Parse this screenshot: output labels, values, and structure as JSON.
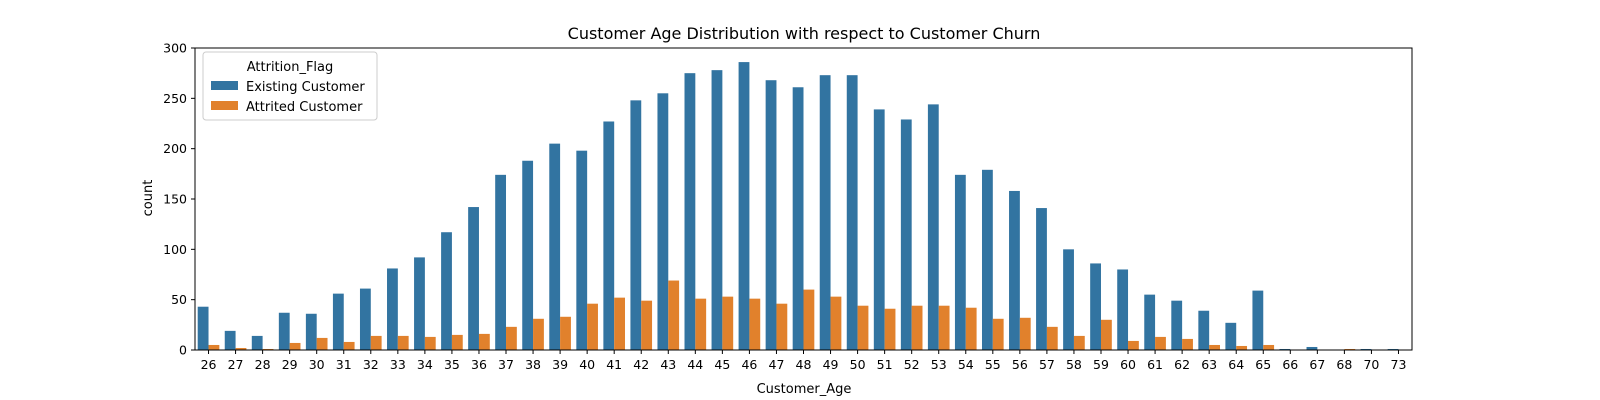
{
  "chart_data": {
    "type": "bar",
    "title": "Customer Age Distribution with respect to Customer Churn",
    "xlabel": "Customer_Age",
    "ylabel": "count",
    "ylim": [
      0,
      300
    ],
    "yticks": [
      0,
      50,
      100,
      150,
      200,
      250,
      300
    ],
    "grid": false,
    "legend": {
      "title": "Attrition_Flag",
      "placement": "top-left"
    },
    "categories": [
      "26",
      "27",
      "28",
      "29",
      "30",
      "31",
      "32",
      "33",
      "34",
      "35",
      "36",
      "37",
      "38",
      "39",
      "40",
      "41",
      "42",
      "43",
      "44",
      "45",
      "46",
      "47",
      "48",
      "49",
      "50",
      "51",
      "52",
      "53",
      "54",
      "55",
      "56",
      "57",
      "58",
      "59",
      "60",
      "61",
      "62",
      "63",
      "64",
      "65",
      "66",
      "67",
      "68",
      "70",
      "73"
    ],
    "series": [
      {
        "name": "Existing Customer",
        "color": "#3274a1",
        "values": [
          43,
          19,
          14,
          37,
          36,
          56,
          61,
          81,
          92,
          117,
          142,
          174,
          188,
          205,
          198,
          227,
          248,
          255,
          275,
          278,
          286,
          268,
          261,
          273,
          273,
          239,
          229,
          244,
          174,
          179,
          158,
          141,
          100,
          86,
          80,
          55,
          49,
          39,
          27,
          59,
          1,
          3,
          0,
          1,
          1
        ]
      },
      {
        "name": "Attrited Customer",
        "color": "#e1812c",
        "values": [
          5,
          2,
          1,
          7,
          12,
          8,
          14,
          14,
          13,
          15,
          16,
          23,
          31,
          33,
          46,
          52,
          49,
          69,
          51,
          53,
          51,
          46,
          60,
          53,
          44,
          41,
          44,
          44,
          42,
          31,
          32,
          23,
          14,
          30,
          9,
          13,
          11,
          5,
          4,
          5,
          0,
          0,
          1,
          0,
          0
        ]
      }
    ]
  }
}
